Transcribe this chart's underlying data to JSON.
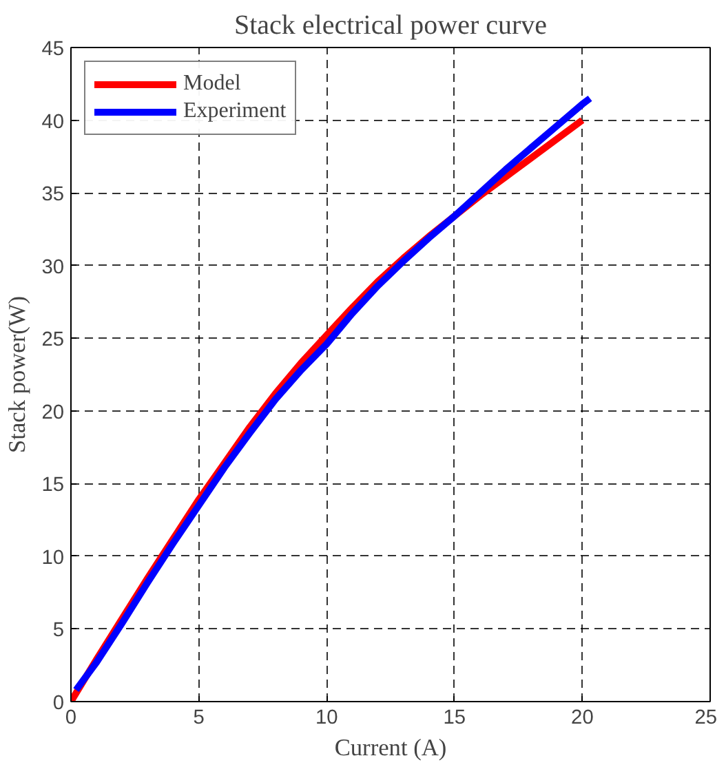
{
  "chart_data": {
    "type": "line",
    "title": "Stack electrical power curve",
    "xlabel": "Current (A)",
    "ylabel": "Stack power(W)",
    "xlim": [
      0,
      25
    ],
    "xticks": [
      0,
      5,
      10,
      15,
      20,
      25
    ],
    "ylim": [
      0,
      45
    ],
    "yticks": [
      0,
      5,
      10,
      15,
      20,
      25,
      30,
      35,
      40,
      45
    ],
    "grid": true,
    "legend": "top left",
    "line_style": "solid",
    "marker": "none",
    "series": [
      {
        "name": "Model",
        "color": "#ff0000",
        "x": [
          0,
          1,
          2,
          3,
          4,
          5,
          6,
          7,
          8,
          9,
          10,
          11,
          12,
          13,
          14,
          15,
          16,
          17,
          18,
          19,
          20
        ],
        "values": [
          0,
          2.9,
          5.7,
          8.5,
          11.2,
          13.9,
          16.4,
          18.9,
          21.2,
          23.3,
          25.2,
          27.1,
          28.9,
          30.5,
          32,
          33.4,
          34.8,
          36.1,
          37.4,
          38.7,
          40
        ]
      },
      {
        "name": "Experiment",
        "color": "#0000ff",
        "x": [
          0.2,
          1,
          2,
          3,
          4,
          5,
          6,
          7,
          8,
          9,
          10,
          11,
          12,
          13,
          14,
          15,
          16,
          17,
          18,
          19,
          20,
          20.3
        ],
        "values": [
          0.8,
          2.7,
          5.4,
          8.2,
          10.9,
          13.5,
          16.1,
          18.5,
          20.8,
          22.8,
          24.6,
          26.7,
          28.6,
          30.3,
          31.9,
          33.4,
          35,
          36.6,
          38.1,
          39.6,
          41.1,
          41.5
        ]
      }
    ]
  }
}
